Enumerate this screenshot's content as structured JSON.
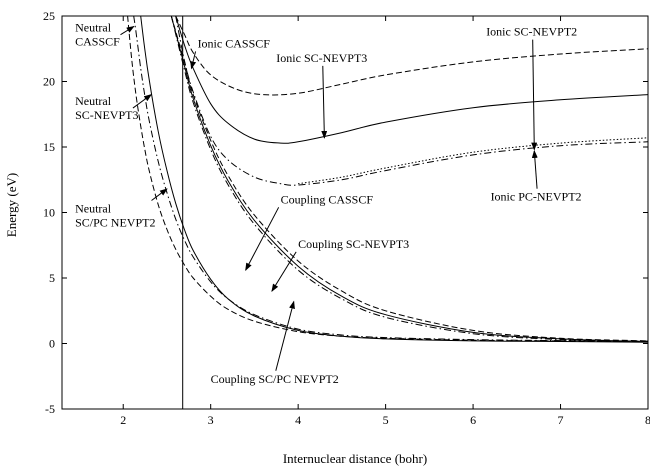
{
  "chart_data": {
    "type": "line",
    "title": "",
    "xlabel": "Internuclear distance (bohr)",
    "ylabel": "Energy (eV)",
    "xlim": [
      1.3,
      8.0
    ],
    "ylim": [
      -5,
      25
    ],
    "xticks": [
      2,
      3,
      4,
      5,
      6,
      7,
      8
    ],
    "yticks": [
      -5,
      0,
      5,
      10,
      15,
      20,
      25
    ],
    "grid": false,
    "vertical_line_x": 2.68,
    "series": [
      {
        "name": "Neutral CASSCF",
        "style": "dashed",
        "x": [
          2.05,
          2.1,
          2.15,
          2.2,
          2.25,
          2.3,
          2.4,
          2.5,
          2.6,
          2.7,
          2.8,
          3.0,
          3.2,
          3.5,
          4.0,
          4.5,
          5.0,
          6.0,
          7.0,
          8.0
        ],
        "y": [
          25.0,
          21.5,
          18.8,
          16.6,
          14.7,
          13.1,
          10.6,
          8.7,
          7.2,
          6.0,
          5.0,
          3.6,
          2.6,
          1.7,
          0.9,
          0.55,
          0.4,
          0.25,
          0.2,
          0.15
        ]
      },
      {
        "name": "Neutral SC-NEVPT3",
        "style": "dash-dot",
        "x": [
          2.12,
          2.15,
          2.2,
          2.25,
          2.3,
          2.4,
          2.5,
          2.6,
          2.7,
          2.8,
          3.0,
          3.2,
          3.5,
          4.0,
          4.5,
          5.0,
          6.0,
          7.0,
          8.0
        ],
        "y": [
          25.0,
          23.6,
          21.0,
          18.8,
          16.9,
          13.9,
          11.5,
          9.5,
          7.9,
          6.6,
          4.7,
          3.4,
          2.2,
          1.1,
          0.65,
          0.45,
          0.3,
          0.22,
          0.18
        ]
      },
      {
        "name": "Neutral SC/PC NEVPT2",
        "style": "solid",
        "x": [
          2.2,
          2.25,
          2.3,
          2.4,
          2.5,
          2.6,
          2.7,
          2.8,
          3.0,
          3.2,
          3.5,
          4.0,
          4.5,
          5.0,
          6.0,
          7.0,
          8.0
        ],
        "y": [
          25.0,
          22.3,
          20.0,
          16.2,
          13.2,
          10.7,
          8.7,
          7.1,
          4.9,
          3.4,
          2.1,
          1.0,
          0.55,
          0.35,
          0.2,
          0.15,
          0.1
        ]
      },
      {
        "name": "Ionic CASSCF",
        "style": "dashed",
        "x": [
          2.6,
          2.7,
          2.8,
          3.0,
          3.3,
          3.6,
          4.0,
          4.5,
          5.0,
          6.0,
          7.0,
          8.0
        ],
        "y": [
          25.0,
          23.6,
          22.2,
          20.5,
          19.4,
          19.0,
          19.1,
          19.8,
          20.5,
          21.5,
          22.1,
          22.5
        ]
      },
      {
        "name": "Ionic SC-NEVPT3",
        "style": "solid",
        "x": [
          2.6,
          2.7,
          2.8,
          3.0,
          3.2,
          3.5,
          3.8,
          4.0,
          4.5,
          5.0,
          6.0,
          7.0,
          8.0
        ],
        "y": [
          25.0,
          22.8,
          21.0,
          18.3,
          16.8,
          15.6,
          15.3,
          15.4,
          16.1,
          16.9,
          18.0,
          18.6,
          19.0
        ]
      },
      {
        "name": "Ionic SC-NEVPT2",
        "style": "dash-dot",
        "x": [
          2.6,
          2.7,
          2.8,
          3.0,
          3.2,
          3.5,
          3.8,
          4.0,
          4.5,
          5.0,
          6.0,
          7.0,
          8.0
        ],
        "y": [
          25.0,
          21.6,
          19.2,
          15.8,
          14.0,
          12.7,
          12.2,
          12.1,
          12.5,
          13.2,
          14.4,
          15.1,
          15.4
        ]
      },
      {
        "name": "Ionic PC-NEVPT2",
        "style": "dotted",
        "x": [
          4.0,
          4.5,
          5.0,
          6.0,
          7.0,
          8.0
        ],
        "y": [
          12.2,
          12.7,
          13.4,
          14.6,
          15.3,
          15.7
        ]
      },
      {
        "name": "Coupling CASSCF",
        "style": "dashed",
        "x": [
          2.55,
          2.7,
          2.8,
          3.0,
          3.2,
          3.5,
          4.0,
          4.5,
          5.0,
          6.0,
          7.0,
          8.0
        ],
        "y": [
          25.0,
          21.5,
          19.0,
          15.5,
          12.8,
          9.8,
          6.3,
          4.0,
          2.5,
          1.0,
          0.4,
          0.2
        ]
      },
      {
        "name": "Coupling SC-NEVPT3",
        "style": "solid",
        "x": [
          2.55,
          2.7,
          2.8,
          3.0,
          3.2,
          3.5,
          4.0,
          4.5,
          5.0,
          6.0,
          7.0,
          8.0
        ],
        "y": [
          25.0,
          21.2,
          18.7,
          15.1,
          12.4,
          9.4,
          5.9,
          3.6,
          2.2,
          0.85,
          0.35,
          0.15
        ]
      },
      {
        "name": "Coupling SC/PC NEVPT2",
        "style": "dash-dot",
        "x": [
          2.55,
          2.7,
          2.8,
          3.0,
          3.2,
          3.5,
          4.0,
          4.5,
          5.0,
          6.0,
          7.0,
          8.0
        ],
        "y": [
          25.0,
          20.9,
          18.4,
          14.8,
          12.1,
          9.1,
          5.6,
          3.4,
          2.0,
          0.75,
          0.3,
          0.12
        ]
      }
    ],
    "annotations": [
      {
        "lines": [
          "Neutral",
          "CASSCF"
        ],
        "x": 1.45,
        "y": 23.8,
        "arrow_to": [
          2.12,
          24.2
        ]
      },
      {
        "lines": [
          "Neutral",
          "SC-NEVPT3"
        ],
        "x": 1.45,
        "y": 18.2,
        "arrow_to": [
          2.32,
          19.0
        ]
      },
      {
        "lines": [
          "Neutral",
          "SC/PC NEVPT2"
        ],
        "x": 1.45,
        "y": 10.0,
        "arrow_to": [
          2.5,
          11.8
        ]
      },
      {
        "lines": [
          "Ionic CASSCF"
        ],
        "x": 2.85,
        "y": 22.6,
        "arrow_to": [
          2.78,
          21.0
        ]
      },
      {
        "lines": [
          "Ionic SC-NEVPT3"
        ],
        "x": 3.75,
        "y": 21.5,
        "arrow_to": [
          4.3,
          15.7
        ]
      },
      {
        "lines": [
          "Ionic SC-NEVPT2"
        ],
        "x": 6.15,
        "y": 23.5,
        "arrow_to": [
          6.7,
          14.8
        ]
      },
      {
        "lines": [
          "Ionic PC-NEVPT2"
        ],
        "x": 6.2,
        "y": 10.9,
        "arrow_to": [
          6.7,
          14.7
        ]
      },
      {
        "lines": [
          "Coupling CASSCF"
        ],
        "x": 3.8,
        "y": 10.7,
        "arrow_to": [
          3.4,
          5.6
        ]
      },
      {
        "lines": [
          "Coupling SC-NEVPT3"
        ],
        "x": 4.0,
        "y": 7.3,
        "arrow_to": [
          3.7,
          4.0
        ]
      },
      {
        "lines": [
          "Coupling SC/PC NEVPT2"
        ],
        "x": 3.0,
        "y": -3.0,
        "arrow_to": [
          3.95,
          3.2
        ]
      }
    ]
  }
}
